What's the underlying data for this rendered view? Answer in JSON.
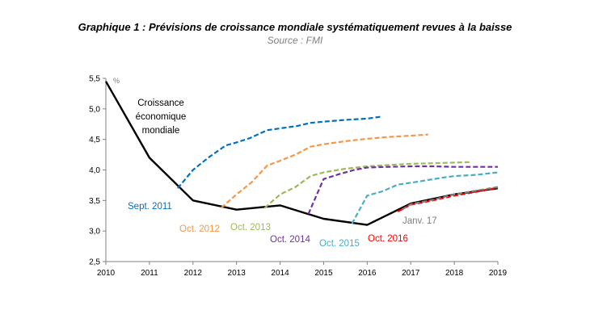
{
  "title": "Graphique 1 : Prévisions de croissance mondiale systématiquement revues à la baisse",
  "subtitle": "Source : FMI",
  "chart_data": {
    "type": "line",
    "title": "Graphique 1 : Prévisions de croissance mondiale systématiquement revues à la baisse",
    "source": "Source : FMI",
    "ylabel_unit": "%",
    "xlim": [
      2010,
      2019
    ],
    "ylim": [
      2.5,
      5.5
    ],
    "x_ticks": [
      "2010",
      "2011",
      "2012",
      "2013",
      "2014",
      "2015",
      "2016",
      "2017",
      "2018",
      "2019"
    ],
    "y_ticks": [
      "2,5",
      "3,0",
      "3,5",
      "4,0",
      "4,5",
      "5,0",
      "5,5"
    ],
    "series": [
      {
        "name": "Croissance économique mondiale",
        "label_lines": [
          "Croissance",
          "économique",
          "mondiale"
        ],
        "color": "#000000",
        "dashed": false,
        "points": [
          [
            2010,
            5.45
          ],
          [
            2011,
            4.2
          ],
          [
            2012,
            3.5
          ],
          [
            2013,
            3.35
          ],
          [
            2014,
            3.42
          ],
          [
            2015,
            3.2
          ],
          [
            2016,
            3.1
          ],
          [
            2017,
            3.45
          ],
          [
            2018,
            3.6
          ],
          [
            2019,
            3.7
          ]
        ]
      },
      {
        "name": "Sept. 2011",
        "color": "#0070c0",
        "dashed": true,
        "points": [
          [
            2011.65,
            3.7
          ],
          [
            2012,
            4.0
          ],
          [
            2012.35,
            4.2
          ],
          [
            2012.75,
            4.4
          ],
          [
            2013,
            4.45
          ],
          [
            2013.3,
            4.52
          ],
          [
            2013.7,
            4.65
          ],
          [
            2014,
            4.68
          ],
          [
            2014.4,
            4.72
          ],
          [
            2014.7,
            4.77
          ],
          [
            2015,
            4.79
          ],
          [
            2015.5,
            4.82
          ],
          [
            2016,
            4.84
          ],
          [
            2016.3,
            4.87
          ]
        ]
      },
      {
        "name": "Oct. 2012",
        "color": "#f79646",
        "dashed": true,
        "points": [
          [
            2012.65,
            3.38
          ],
          [
            2013,
            3.6
          ],
          [
            2013.35,
            3.8
          ],
          [
            2013.7,
            4.07
          ],
          [
            2014,
            4.15
          ],
          [
            2014.35,
            4.25
          ],
          [
            2014.7,
            4.38
          ],
          [
            2015,
            4.42
          ],
          [
            2015.5,
            4.47
          ],
          [
            2016,
            4.51
          ],
          [
            2016.5,
            4.54
          ],
          [
            2017,
            4.56
          ],
          [
            2017.4,
            4.58
          ]
        ]
      },
      {
        "name": "Oct. 2013",
        "color": "#9bbb59",
        "dashed": true,
        "points": [
          [
            2013.65,
            3.38
          ],
          [
            2014,
            3.6
          ],
          [
            2014.35,
            3.72
          ],
          [
            2014.7,
            3.9
          ],
          [
            2015,
            3.96
          ],
          [
            2015.5,
            4.02
          ],
          [
            2016,
            4.06
          ],
          [
            2016.5,
            4.08
          ],
          [
            2017,
            4.1
          ],
          [
            2017.5,
            4.11
          ],
          [
            2018,
            4.12
          ],
          [
            2018.4,
            4.13
          ]
        ]
      },
      {
        "name": "Oct. 2014",
        "color": "#7030a0",
        "dashed": true,
        "points": [
          [
            2014.65,
            3.28
          ],
          [
            2015,
            3.85
          ],
          [
            2015.35,
            3.93
          ],
          [
            2015.7,
            4.0
          ],
          [
            2016,
            4.04
          ],
          [
            2016.5,
            4.05
          ],
          [
            2017,
            4.06
          ],
          [
            2017.5,
            4.06
          ],
          [
            2018,
            4.05
          ],
          [
            2018.5,
            4.05
          ],
          [
            2019,
            4.05
          ]
        ]
      },
      {
        "name": "Oct. 2015",
        "color": "#4bacc6",
        "dashed": true,
        "points": [
          [
            2015.65,
            3.12
          ],
          [
            2016,
            3.58
          ],
          [
            2016.35,
            3.65
          ],
          [
            2016.7,
            3.76
          ],
          [
            2017,
            3.79
          ],
          [
            2017.35,
            3.83
          ],
          [
            2017.7,
            3.87
          ],
          [
            2018,
            3.9
          ],
          [
            2018.5,
            3.92
          ],
          [
            2019,
            3.96
          ]
        ]
      },
      {
        "name": "Oct. 2016",
        "color": "#ff0000",
        "dashed": true,
        "points": [
          [
            2016.7,
            3.32
          ],
          [
            2017,
            3.43
          ],
          [
            2017.5,
            3.5
          ],
          [
            2018,
            3.58
          ],
          [
            2018.5,
            3.64
          ],
          [
            2019,
            3.71
          ]
        ]
      },
      {
        "name": "Janv. 17",
        "color": "#7f7f7f",
        "dashed": true,
        "points": [
          [
            2016.8,
            3.35
          ],
          [
            2017,
            3.44
          ],
          [
            2017.5,
            3.51
          ],
          [
            2018,
            3.6
          ],
          [
            2018.5,
            3.66
          ],
          [
            2019,
            3.72
          ]
        ]
      }
    ],
    "annotations": [
      "Sept. 2011",
      "Oct. 2012",
      "Oct. 2013",
      "Oct. 2014",
      "Oct. 2015",
      "Oct. 2016",
      "Janv. 17"
    ]
  }
}
